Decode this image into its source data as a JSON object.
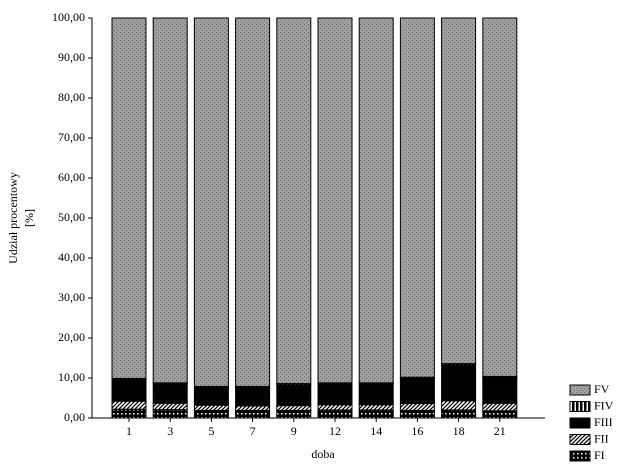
{
  "chart_data": {
    "type": "stacked-bar",
    "y_label": "Udział procentowy [%]",
    "x_label": "doba",
    "categories": [
      "1",
      "3",
      "5",
      "7",
      "9",
      "12",
      "14",
      "16",
      "18",
      "21"
    ],
    "series": [
      {
        "name": "FI",
        "color": "#000000",
        "values": [
          2.2,
          2.1,
          1.9,
          1.9,
          1.9,
          2.0,
          2.0,
          1.9,
          2.0,
          1.8
        ]
      },
      {
        "name": "FII",
        "color": "#000000",
        "values": [
          2.0,
          1.6,
          1.3,
          1.1,
          1.2,
          1.3,
          1.3,
          1.7,
          2.3,
          1.9
        ]
      },
      {
        "name": "FIII",
        "color": "#000000",
        "values": [
          5.4,
          4.8,
          4.4,
          4.6,
          5.2,
          5.2,
          5.2,
          6.3,
          9.0,
          6.4
        ]
      },
      {
        "name": "FIV",
        "color": "#000000",
        "values": [
          0.3,
          0.3,
          0.3,
          0.3,
          0.3,
          0.3,
          0.3,
          0.3,
          0.3,
          0.3
        ]
      },
      {
        "name": "FV",
        "color": "#a0a0a0",
        "values": [
          90.1,
          91.2,
          92.1,
          92.1,
          91.4,
          91.2,
          91.2,
          89.8,
          86.4,
          89.6
        ]
      }
    ],
    "ylim": [
      0,
      100
    ],
    "yticks": [
      {
        "value": 0,
        "label": "0,00"
      },
      {
        "value": 10,
        "label": "10,00"
      },
      {
        "value": 20,
        "label": "20,00"
      },
      {
        "value": 30,
        "label": "30,00"
      },
      {
        "value": 40,
        "label": "40,00"
      },
      {
        "value": 50,
        "label": "50,00"
      },
      {
        "value": 60,
        "label": "60,00"
      },
      {
        "value": 70,
        "label": "70,00"
      },
      {
        "value": 80,
        "label": "80,00"
      },
      {
        "value": 90,
        "label": "90,00"
      },
      {
        "value": 100,
        "label": "100,00"
      }
    ],
    "legend": "bottom-right"
  }
}
